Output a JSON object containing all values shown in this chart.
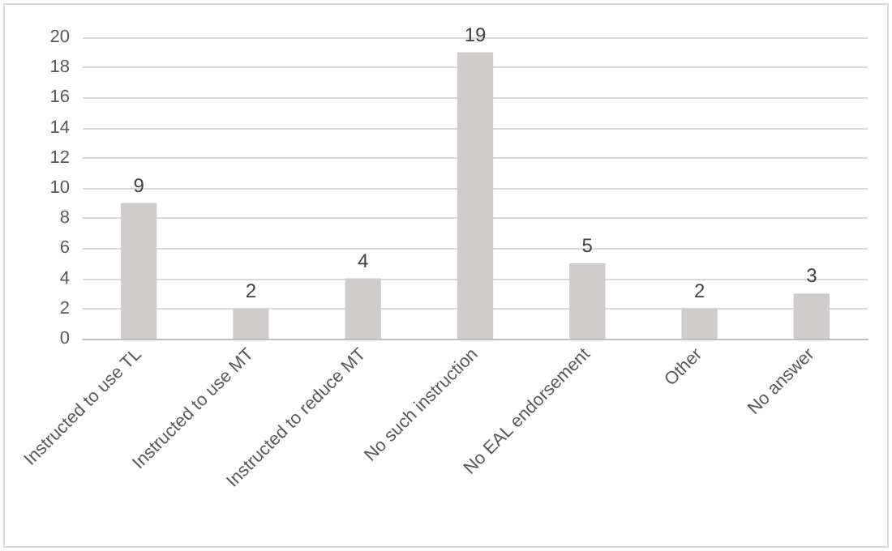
{
  "chart_data": {
    "type": "bar",
    "categories": [
      "Instructed to use TL",
      "Instructed to use MT",
      "Instructed to reduce MT",
      "No such instruction",
      "No EAL endorsement",
      "Other",
      "No answer"
    ],
    "values": [
      9,
      2,
      4,
      19,
      5,
      2,
      3
    ],
    "color": "#d0cccc",
    "ylim": [
      0,
      20
    ],
    "yticks": [
      0,
      2,
      4,
      6,
      8,
      10,
      12,
      14,
      16,
      18,
      20
    ],
    "grid": "y",
    "data_labels": true
  }
}
